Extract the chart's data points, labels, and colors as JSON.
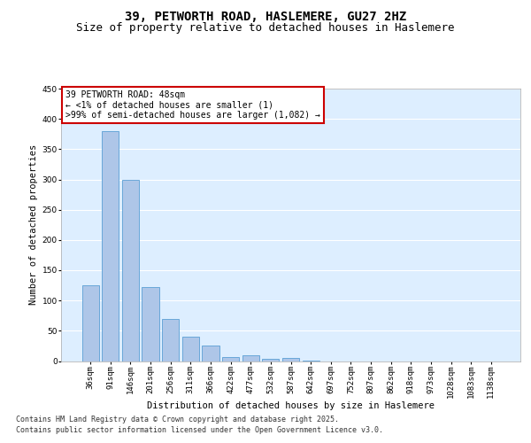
{
  "title": "39, PETWORTH ROAD, HASLEMERE, GU27 2HZ",
  "subtitle": "Size of property relative to detached houses in Haslemere",
  "xlabel": "Distribution of detached houses by size in Haslemere",
  "ylabel": "Number of detached properties",
  "categories": [
    "36sqm",
    "91sqm",
    "146sqm",
    "201sqm",
    "256sqm",
    "311sqm",
    "366sqm",
    "422sqm",
    "477sqm",
    "532sqm",
    "587sqm",
    "642sqm",
    "697sqm",
    "752sqm",
    "807sqm",
    "862sqm",
    "918sqm",
    "973sqm",
    "1028sqm",
    "1083sqm",
    "1138sqm"
  ],
  "values": [
    125,
    380,
    300,
    122,
    70,
    40,
    25,
    7,
    10,
    3,
    5,
    1,
    0,
    0,
    0,
    0,
    0,
    0,
    0,
    0,
    0
  ],
  "bar_color": "#aec6e8",
  "bar_edge_color": "#5a9fd4",
  "background_color": "#ffffff",
  "plot_bg_color": "#ddeeff",
  "grid_color": "#ffffff",
  "ylim": [
    0,
    450
  ],
  "yticks": [
    0,
    50,
    100,
    150,
    200,
    250,
    300,
    350,
    400,
    450
  ],
  "annotation_text": "39 PETWORTH ROAD: 48sqm\n← <1% of detached houses are smaller (1)\n>99% of semi-detached houses are larger (1,082) →",
  "red_box_color": "#cc0000",
  "footer_line1": "Contains HM Land Registry data © Crown copyright and database right 2025.",
  "footer_line2": "Contains public sector information licensed under the Open Government Licence v3.0.",
  "title_fontsize": 10,
  "subtitle_fontsize": 9,
  "axis_label_fontsize": 7.5,
  "tick_fontsize": 6.5,
  "annotation_fontsize": 7,
  "footer_fontsize": 6
}
